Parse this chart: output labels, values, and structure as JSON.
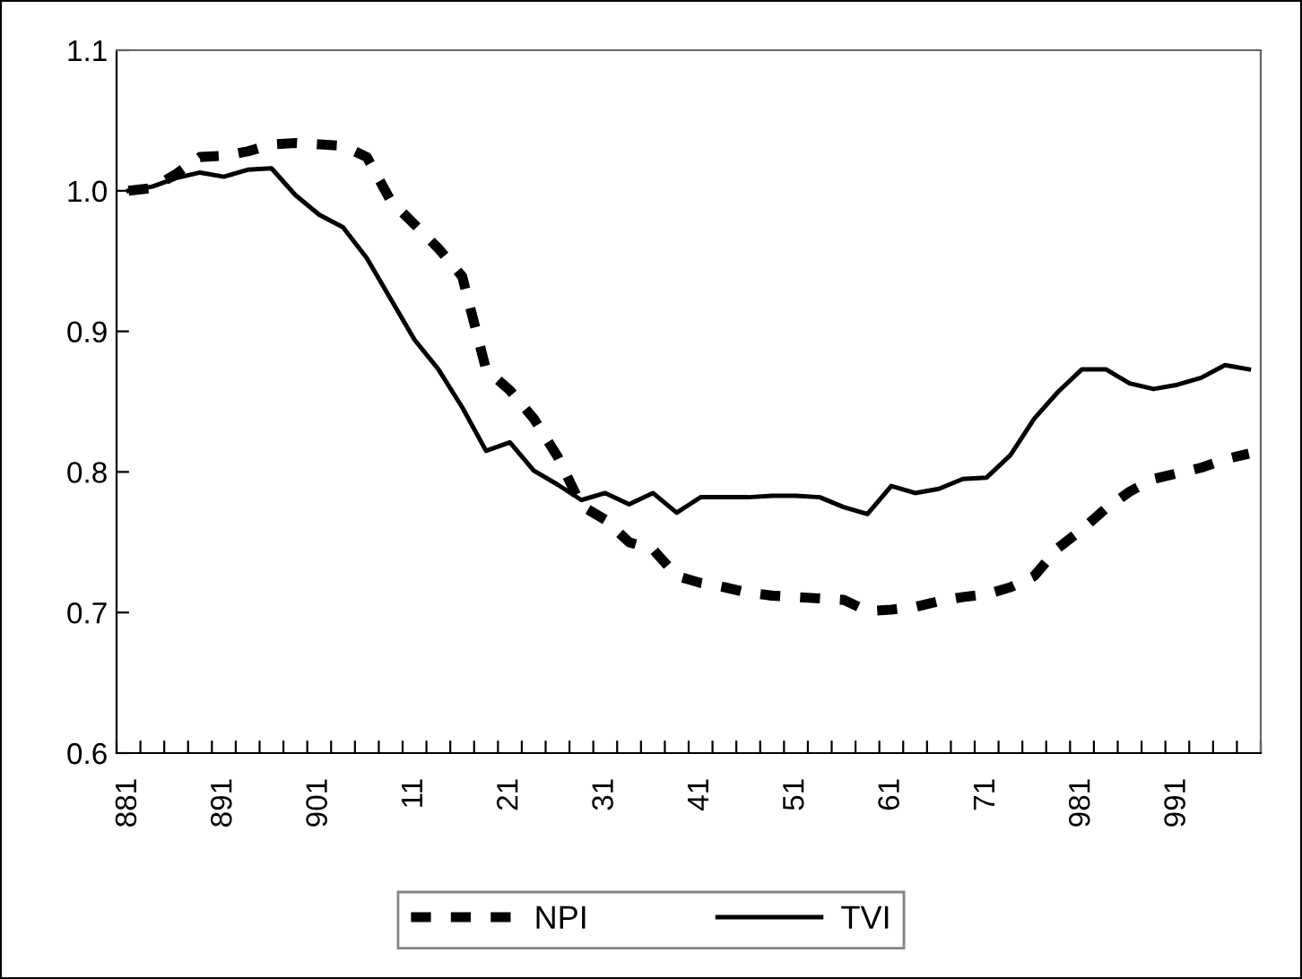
{
  "chart_data": {
    "type": "line",
    "categories": [
      "881",
      null,
      null,
      null,
      "891",
      null,
      null,
      null,
      "901",
      null,
      null,
      null,
      "11",
      null,
      null,
      null,
      "21",
      null,
      null,
      null,
      "31",
      null,
      null,
      null,
      "41",
      null,
      null,
      null,
      "51",
      null,
      null,
      null,
      "61",
      null,
      null,
      null,
      "71",
      null,
      null,
      null,
      "981",
      null,
      null,
      null,
      "991",
      null,
      null,
      null
    ],
    "series": [
      {
        "name": "NPI",
        "color": "#000000",
        "line_style": "dashed",
        "values": [
          1.0,
          1.002,
          1.012,
          1.024,
          1.025,
          1.028,
          1.033,
          1.034,
          1.033,
          1.032,
          1.024,
          0.993,
          0.976,
          0.959,
          0.939,
          0.873,
          0.858,
          0.838,
          0.811,
          0.776,
          0.766,
          0.75,
          0.745,
          0.726,
          0.721,
          0.718,
          0.714,
          0.712,
          0.711,
          0.71,
          0.709,
          0.701,
          0.702,
          0.704,
          0.708,
          0.711,
          0.713,
          0.718,
          0.726,
          0.746,
          0.759,
          0.774,
          0.786,
          0.795,
          0.799,
          0.803,
          0.809,
          0.813
        ]
      },
      {
        "name": "TVI",
        "color": "#000000",
        "line_style": "solid",
        "values": [
          1.0,
          1.003,
          1.009,
          1.013,
          1.01,
          1.015,
          1.016,
          0.997,
          0.983,
          0.974,
          0.952,
          0.923,
          0.894,
          0.873,
          0.846,
          0.815,
          0.821,
          0.801,
          0.791,
          0.78,
          0.785,
          0.777,
          0.785,
          0.771,
          0.782,
          0.782,
          0.782,
          0.783,
          0.783,
          0.782,
          0.775,
          0.77,
          0.79,
          0.785,
          0.788,
          0.795,
          0.796,
          0.812,
          0.838,
          0.857,
          0.873,
          0.873,
          0.863,
          0.859,
          0.862,
          0.867,
          0.876,
          0.873
        ]
      }
    ],
    "ylim": [
      0.6,
      1.1
    ],
    "yticks": [
      {
        "value": 0.6,
        "label": "0.6"
      },
      {
        "value": 0.7,
        "label": "0.7"
      },
      {
        "value": 0.8,
        "label": "0.8"
      },
      {
        "value": 0.9,
        "label": "0.9"
      },
      {
        "value": 1.0,
        "label": "1.0"
      },
      {
        "value": 1.1,
        "label": "1.1"
      }
    ],
    "legend": "bottom"
  }
}
